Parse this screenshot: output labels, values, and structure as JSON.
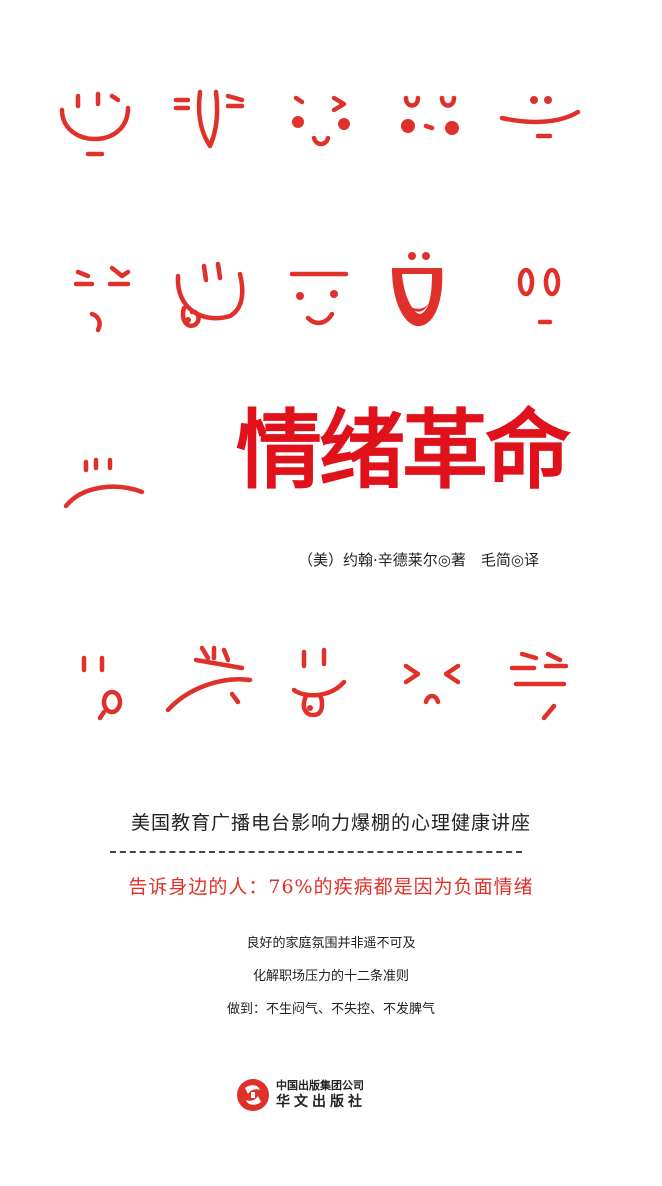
{
  "cover": {
    "title": "情绪革命",
    "author_line": "（美）约翰·辛德莱尔◎著　毛简◎译",
    "tagline_primary": "美国教育广播电台影响力爆棚的心理健康讲座",
    "tagline_secondary": "告诉身边的人：76%的疾病都是因为负面情绪",
    "points": [
      "良好的家庭氛围并非遥不可及",
      "化解职场压力的十二条准则",
      "做到：不生闷气、不失控、不发脾气"
    ],
    "publisher": {
      "group": "中国出版集团公司",
      "press": "华文出版社",
      "logo": "publisher-logo-icon"
    },
    "faces": [
      "smile-face-icon",
      "smirk-face-icon",
      "blush-face-icon",
      "shy-face-icon",
      "grin-face-icon",
      "squint-face-icon",
      "tongue-face-icon",
      "flat-brow-face-icon",
      "laugh-face-icon",
      "surprised-face-icon",
      "frown-face-icon",
      "oh-face-icon",
      "scowl-face-icon",
      "tongue-out-face-icon",
      "wince-face-icon",
      "annoyed-face-icon"
    ],
    "accent_color": "#e0302a",
    "title_color": "#e0111b"
  }
}
